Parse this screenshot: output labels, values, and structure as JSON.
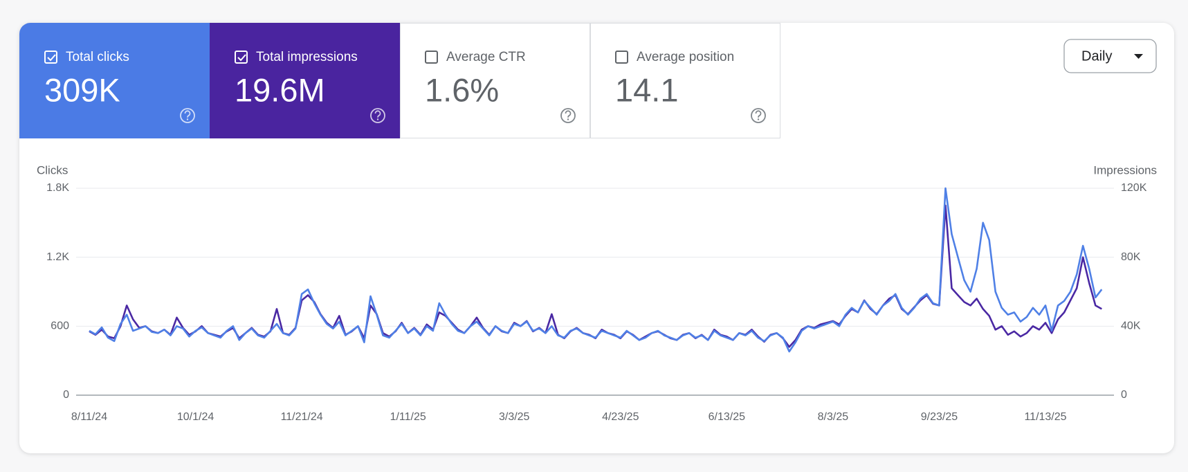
{
  "metrics": [
    {
      "label": "Total clicks",
      "value": "309K",
      "selected": true,
      "color": "#4b7be5"
    },
    {
      "label": "Total impressions",
      "value": "19.6M",
      "selected": true,
      "color": "#4a249f"
    },
    {
      "label": "Average CTR",
      "value": "1.6%",
      "selected": false,
      "color": "#ffffff"
    },
    {
      "label": "Average position",
      "value": "14.1",
      "selected": false,
      "color": "#ffffff"
    }
  ],
  "granularity": "Daily",
  "chart_data": {
    "type": "line",
    "ylabel": "Clicks",
    "y2label": "Impressions",
    "grid": true,
    "categories": [
      "8/11/24",
      null,
      null,
      null,
      null,
      null,
      null,
      null,
      null,
      null,
      null,
      null,
      null,
      null,
      null,
      null,
      null,
      "10/1/24",
      null,
      null,
      null,
      null,
      null,
      null,
      null,
      null,
      null,
      null,
      null,
      null,
      null,
      null,
      null,
      null,
      "11/21/24",
      null,
      null,
      null,
      null,
      null,
      null,
      null,
      null,
      null,
      null,
      null,
      null,
      null,
      null,
      null,
      null,
      "1/11/25",
      null,
      null,
      null,
      null,
      null,
      null,
      null,
      null,
      null,
      null,
      null,
      null,
      null,
      null,
      null,
      null,
      "3/3/25",
      null,
      null,
      null,
      null,
      null,
      null,
      null,
      null,
      null,
      null,
      null,
      null,
      null,
      null,
      null,
      null,
      "4/23/25",
      null,
      null,
      null,
      null,
      null,
      null,
      null,
      null,
      null,
      null,
      null,
      null,
      null,
      null,
      null,
      null,
      "6/13/25",
      null,
      null,
      null,
      null,
      null,
      null,
      null,
      null,
      null,
      null,
      null,
      null,
      null,
      null,
      null,
      null,
      "8/3/25",
      null,
      null,
      null,
      null,
      null,
      null,
      null,
      null,
      null,
      null,
      null,
      null,
      null,
      null,
      null,
      null,
      "9/23/25",
      null,
      null,
      null,
      null,
      null,
      null,
      null,
      null,
      null,
      null,
      null,
      null,
      null,
      null,
      null,
      null,
      "11/13/25",
      null,
      null,
      null,
      null,
      null,
      null,
      null,
      null,
      null
    ],
    "ylim": [
      0,
      1800
    ],
    "yticks": [
      0,
      600,
      {
        "value": 1200,
        "label": "1.2K"
      },
      {
        "value": 1800,
        "label": "1.8K"
      }
    ],
    "y2lim": [
      0,
      120000
    ],
    "y2ticks": [
      0,
      {
        "value": 40000,
        "label": "40K"
      },
      {
        "value": 80000,
        "label": "80K"
      },
      {
        "value": 120000,
        "label": "120K"
      }
    ],
    "series": [
      {
        "color": "#4f80e6",
        "axis": "y",
        "values": [
          560,
          530,
          590,
          500,
          470,
          620,
          700,
          560,
          580,
          600,
          550,
          540,
          570,
          520,
          600,
          580,
          510,
          560,
          590,
          540,
          520,
          500,
          560,
          600,
          480,
          540,
          580,
          520,
          500,
          560,
          620,
          540,
          520,
          580,
          880,
          920,
          800,
          700,
          620,
          580,
          640,
          520,
          560,
          600,
          460,
          860,
          700,
          520,
          500,
          560,
          620,
          540,
          580,
          520,
          600,
          560,
          800,
          700,
          620,
          560,
          540,
          600,
          640,
          580,
          520,
          600,
          560,
          540,
          620,
          600,
          640,
          560,
          580,
          540,
          600,
          520,
          500,
          560,
          580,
          540,
          520,
          500,
          560,
          540,
          520,
          500,
          560,
          520,
          480,
          500,
          540,
          560,
          520,
          500,
          480,
          520,
          540,
          500,
          520,
          480,
          560,
          520,
          500,
          480,
          540,
          520,
          560,
          500,
          470,
          520,
          540,
          500,
          380,
          460,
          560,
          600,
          580,
          600,
          620,
          640,
          600,
          700,
          760,
          720,
          820,
          760,
          700,
          780,
          820,
          880,
          760,
          700,
          760,
          840,
          880,
          800,
          780,
          1800,
          1400,
          1200,
          1000,
          900,
          1100,
          1500,
          1350,
          900,
          760,
          700,
          720,
          640,
          680,
          760,
          700,
          780,
          560,
          780,
          820,
          900,
          1050,
          1300,
          1100,
          850,
          920
        ]
      },
      {
        "color": "#4a28a3",
        "axis": "y2",
        "values": [
          37000,
          35000,
          38000,
          34000,
          33000,
          40000,
          52000,
          44000,
          39000,
          40000,
          37000,
          36000,
          38000,
          35000,
          45000,
          39000,
          35000,
          37000,
          40000,
          36000,
          35000,
          34000,
          37000,
          39000,
          33000,
          36000,
          39000,
          35000,
          34000,
          37000,
          50000,
          36000,
          35000,
          39000,
          55000,
          58000,
          54000,
          47000,
          42000,
          39000,
          46000,
          35000,
          37000,
          40000,
          33000,
          52000,
          47000,
          36000,
          34000,
          37000,
          42000,
          36000,
          39000,
          35000,
          41000,
          38000,
          48000,
          46000,
          42000,
          38000,
          36000,
          40000,
          45000,
          39000,
          35000,
          40000,
          37000,
          36000,
          42000,
          40000,
          43000,
          37000,
          39000,
          36000,
          47000,
          35000,
          33000,
          37000,
          39000,
          36000,
          35000,
          33000,
          38000,
          36000,
          35000,
          33000,
          37000,
          35000,
          32000,
          34000,
          36000,
          37000,
          35000,
          33000,
          32000,
          35000,
          36000,
          33000,
          35000,
          32000,
          38000,
          35000,
          34000,
          32000,
          36000,
          35000,
          38000,
          34000,
          31000,
          35000,
          36000,
          33000,
          28000,
          32000,
          38000,
          40000,
          39000,
          41000,
          42000,
          43000,
          41000,
          46000,
          50000,
          48000,
          55000,
          50000,
          47000,
          52000,
          56000,
          58000,
          50000,
          47000,
          51000,
          55000,
          58000,
          53000,
          52000,
          110000,
          62000,
          58000,
          54000,
          52000,
          56000,
          50000,
          46000,
          38000,
          40000,
          35000,
          37000,
          34000,
          36000,
          40000,
          38000,
          42000,
          36000,
          44000,
          48000,
          55000,
          62000,
          80000,
          65000,
          52000,
          50000
        ]
      }
    ]
  }
}
